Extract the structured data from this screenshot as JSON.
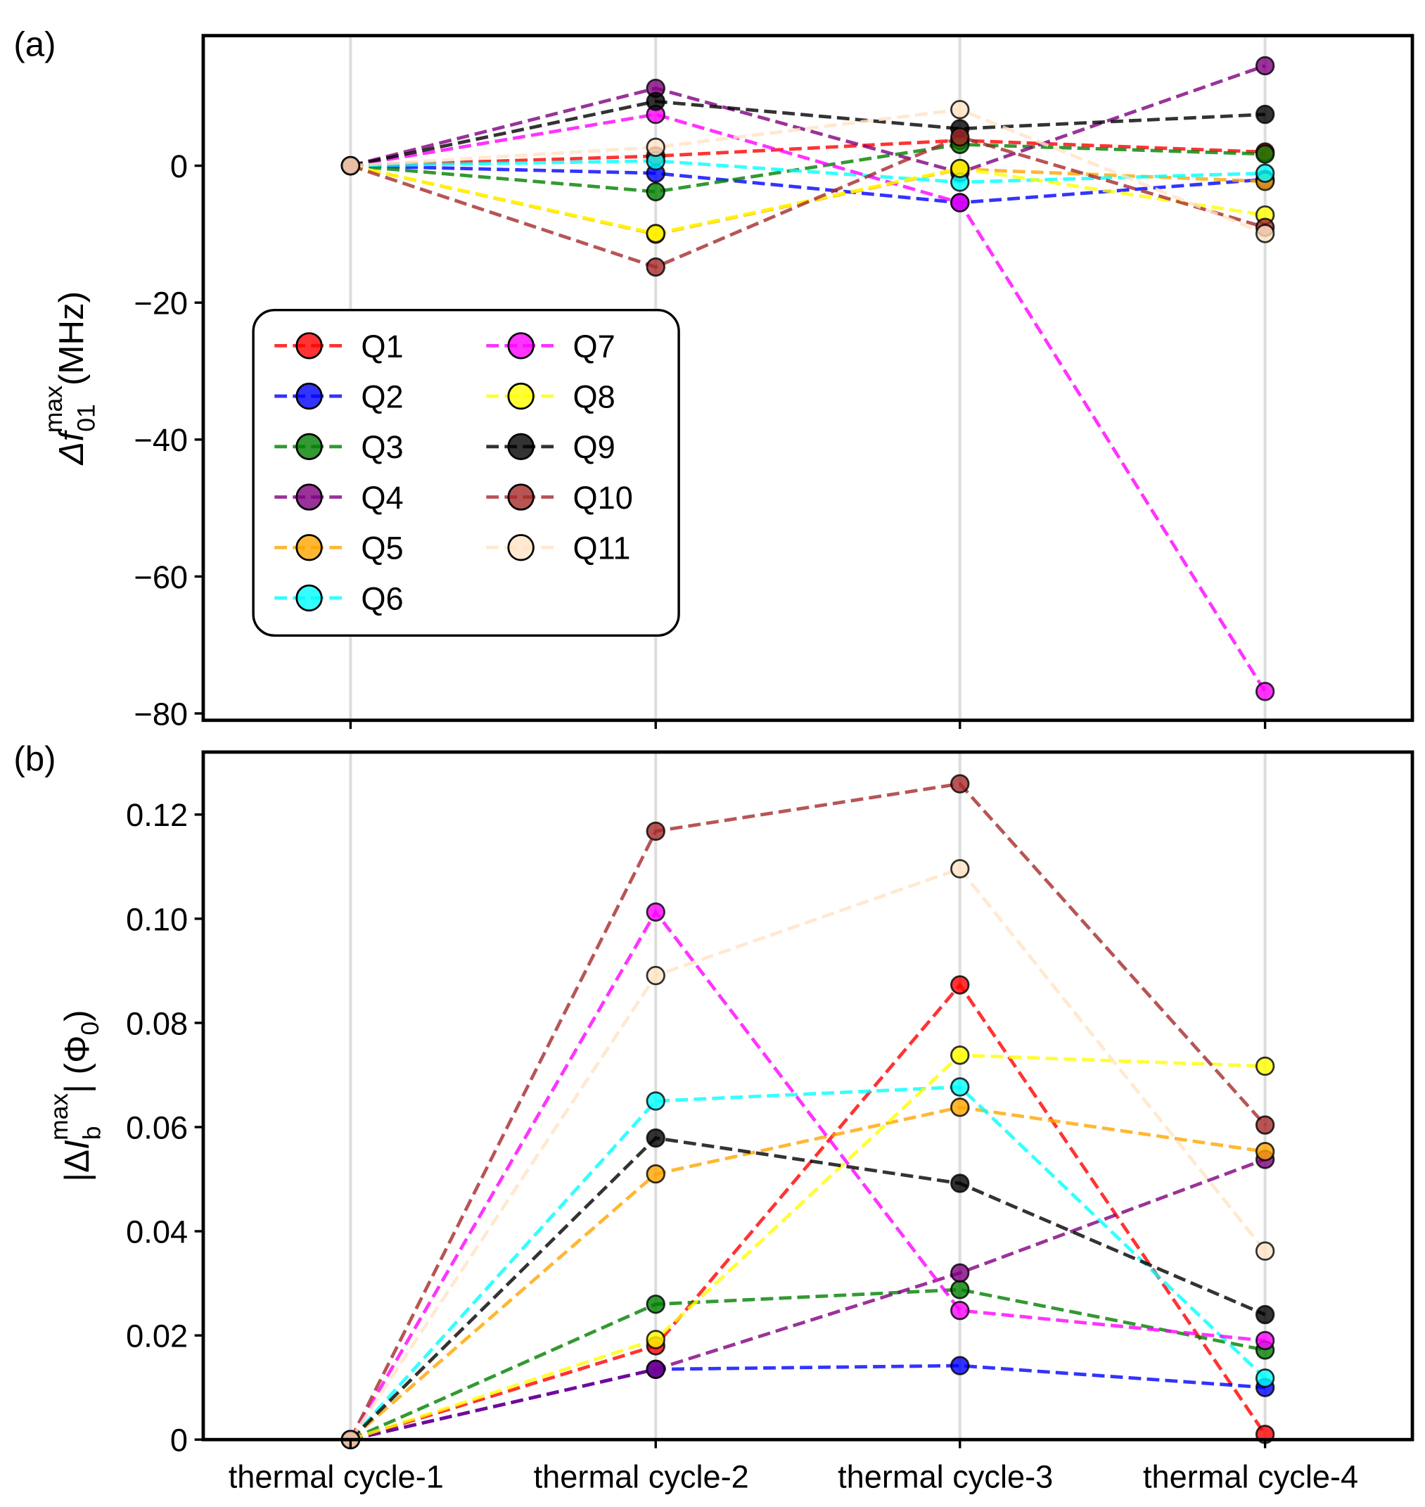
{
  "chart_data": [
    {
      "type": "line",
      "panel_label": "(a)",
      "ylabel": {
        "delta": "Δ",
        "var": "f",
        "sub": "01",
        "sup": "max",
        "unit": "(MHz)"
      },
      "categories": [
        "thermal cycle-1",
        "thermal cycle-2",
        "thermal cycle-3",
        "thermal cycle-4"
      ],
      "ylim": [
        -81,
        19
      ],
      "yticks": [
        0,
        -20,
        -40,
        -60,
        -80
      ],
      "ytick_labels": [
        "0",
        "−20",
        "−40",
        "−60",
        "−80"
      ],
      "legend_placement": "center-left",
      "series": [
        {
          "name": "Q1",
          "color": "#ff0000",
          "values": [
            0,
            1.4,
            3.7,
            2.0
          ]
        },
        {
          "name": "Q2",
          "color": "#0000ff",
          "values": [
            0,
            -1.1,
            -5.4,
            -2.0
          ]
        },
        {
          "name": "Q3",
          "color": "#008000",
          "values": [
            0,
            -3.8,
            3.1,
            1.7
          ]
        },
        {
          "name": "Q4",
          "color": "#800080",
          "values": [
            0,
            11.3,
            -1.0,
            14.6
          ]
        },
        {
          "name": "Q5",
          "color": "#ffa500",
          "values": [
            0,
            -10.0,
            -0.5,
            -2.3
          ]
        },
        {
          "name": "Q6",
          "color": "#00ffff",
          "values": [
            0,
            0.7,
            -2.4,
            -1.1
          ]
        },
        {
          "name": "Q7",
          "color": "#ff00ff",
          "values": [
            0,
            7.5,
            -5.4,
            -76.8
          ]
        },
        {
          "name": "Q8",
          "color": "#ffff00",
          "values": [
            0,
            -9.9,
            -0.4,
            -7.2
          ]
        },
        {
          "name": "Q9",
          "color": "#000000",
          "values": [
            0,
            9.4,
            5.4,
            7.5
          ]
        },
        {
          "name": "Q10",
          "color": "#a52a2a",
          "values": [
            0,
            -14.8,
            4.2,
            -9.0
          ]
        },
        {
          "name": "Q11",
          "color": "#ffe4c4",
          "values": [
            0,
            2.7,
            8.2,
            -9.9
          ]
        }
      ]
    },
    {
      "type": "line",
      "panel_label": "(b)",
      "ylabel": {
        "delta": "|Δ",
        "var": "I",
        "sub": "b",
        "sup": "max",
        "unit": "| (Φ",
        "unit_sub": "0",
        "unit_end": ")"
      },
      "categories": [
        "thermal cycle-1",
        "thermal cycle-2",
        "thermal cycle-3",
        "thermal cycle-4"
      ],
      "ylim": [
        0,
        0.132
      ],
      "yticks": [
        0,
        0.02,
        0.04,
        0.06,
        0.08,
        0.1,
        0.12
      ],
      "ytick_labels": [
        "0",
        "0.02",
        "0.04",
        "0.06",
        "0.08",
        "0.10",
        "0.12"
      ],
      "series": [
        {
          "name": "Q1",
          "color": "#ff0000",
          "values": [
            0,
            0.018,
            0.0873,
            0.001
          ]
        },
        {
          "name": "Q2",
          "color": "#0000ff",
          "values": [
            0,
            0.0135,
            0.0142,
            0.01
          ]
        },
        {
          "name": "Q3",
          "color": "#008000",
          "values": [
            0,
            0.026,
            0.0288,
            0.0172
          ]
        },
        {
          "name": "Q4",
          "color": "#800080",
          "values": [
            0,
            0.0135,
            0.032,
            0.0538
          ]
        },
        {
          "name": "Q5",
          "color": "#ffa500",
          "values": [
            0,
            0.051,
            0.0638,
            0.0553
          ]
        },
        {
          "name": "Q6",
          "color": "#00ffff",
          "values": [
            0,
            0.065,
            0.0677,
            0.0118
          ]
        },
        {
          "name": "Q7",
          "color": "#ff00ff",
          "values": [
            0,
            0.1013,
            0.0248,
            0.019
          ]
        },
        {
          "name": "Q8",
          "color": "#ffff00",
          "values": [
            0,
            0.0192,
            0.0738,
            0.0717
          ]
        },
        {
          "name": "Q9",
          "color": "#000000",
          "values": [
            0,
            0.0579,
            0.0492,
            0.024
          ]
        },
        {
          "name": "Q10",
          "color": "#a52a2a",
          "values": [
            0,
            0.1168,
            0.1259,
            0.0604
          ]
        },
        {
          "name": "Q11",
          "color": "#ffe4c4",
          "values": [
            0,
            0.0891,
            0.1096,
            0.0362
          ]
        }
      ]
    }
  ]
}
